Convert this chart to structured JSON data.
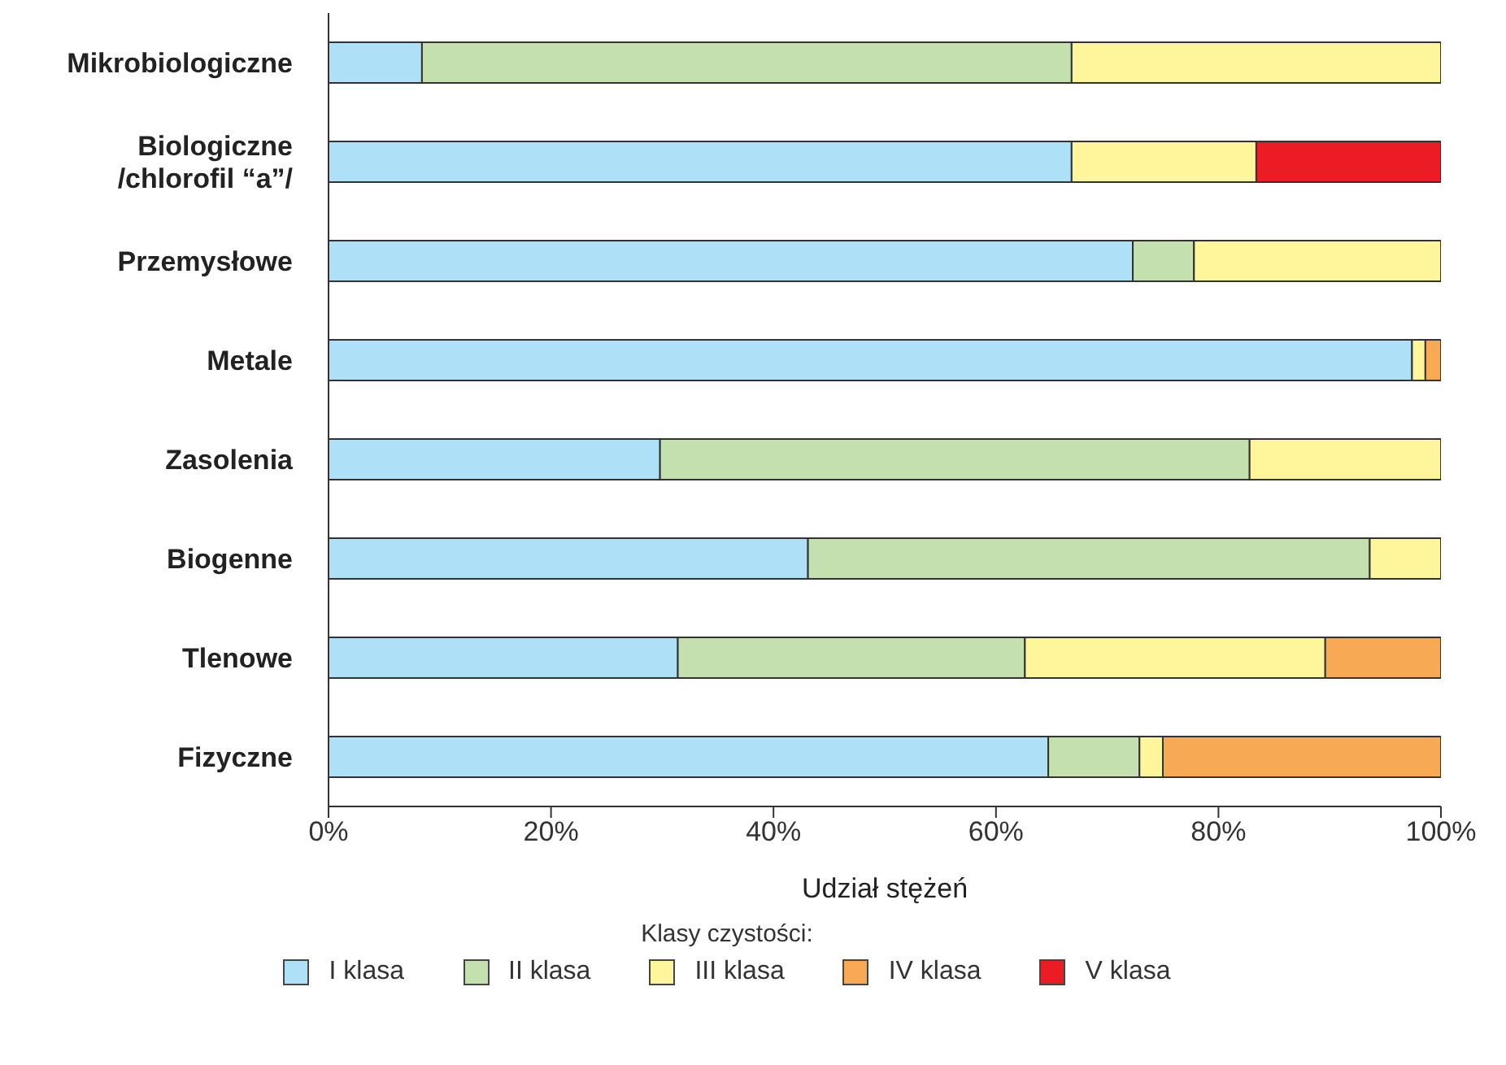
{
  "chart_data": {
    "type": "bar",
    "orientation": "horizontal",
    "stacked": true,
    "categories": [
      "Mikrobiologiczne",
      "Biologiczne\n/chlorofil “a”/",
      "Przemysłowe",
      "Metale",
      "Zasolenia",
      "Biogenne",
      "Tlenowe",
      "Fizyczne"
    ],
    "series": [
      {
        "name": "I klasa",
        "color": "#aee0f8",
        "values": [
          8.4,
          66.8,
          72.3,
          97.4,
          29.8,
          43.1,
          31.4,
          64.7
        ]
      },
      {
        "name": "II klasa",
        "color": "#c4e0ae",
        "values": [
          58.4,
          null,
          5.5,
          null,
          53.0,
          50.5,
          31.2,
          8.2
        ]
      },
      {
        "name": "III klasa",
        "color": "#fff59b",
        "values": [
          33.2,
          16.6,
          22.2,
          1.2,
          17.2,
          6.4,
          27.0,
          2.1
        ]
      },
      {
        "name": "IV klasa",
        "color": "#f8a953",
        "values": [
          null,
          null,
          null,
          1.4,
          null,
          null,
          10.4,
          25.0
        ]
      },
      {
        "name": "V klasa",
        "color": "#ec1c24",
        "values": [
          null,
          16.6,
          null,
          null,
          null,
          null,
          null,
          null
        ]
      }
    ],
    "xlim": [
      0,
      100
    ],
    "xticks": [
      {
        "value": 0,
        "label": "0%"
      },
      {
        "value": 20,
        "label": "20%"
      },
      {
        "value": 40,
        "label": "40%"
      },
      {
        "value": 60,
        "label": "60%"
      },
      {
        "value": 80,
        "label": "80%"
      },
      {
        "value": 100,
        "label": "100%"
      }
    ],
    "xlabel": "Udział stężeń",
    "legend_title": "Klasy czystości:",
    "legend": "bottom"
  }
}
